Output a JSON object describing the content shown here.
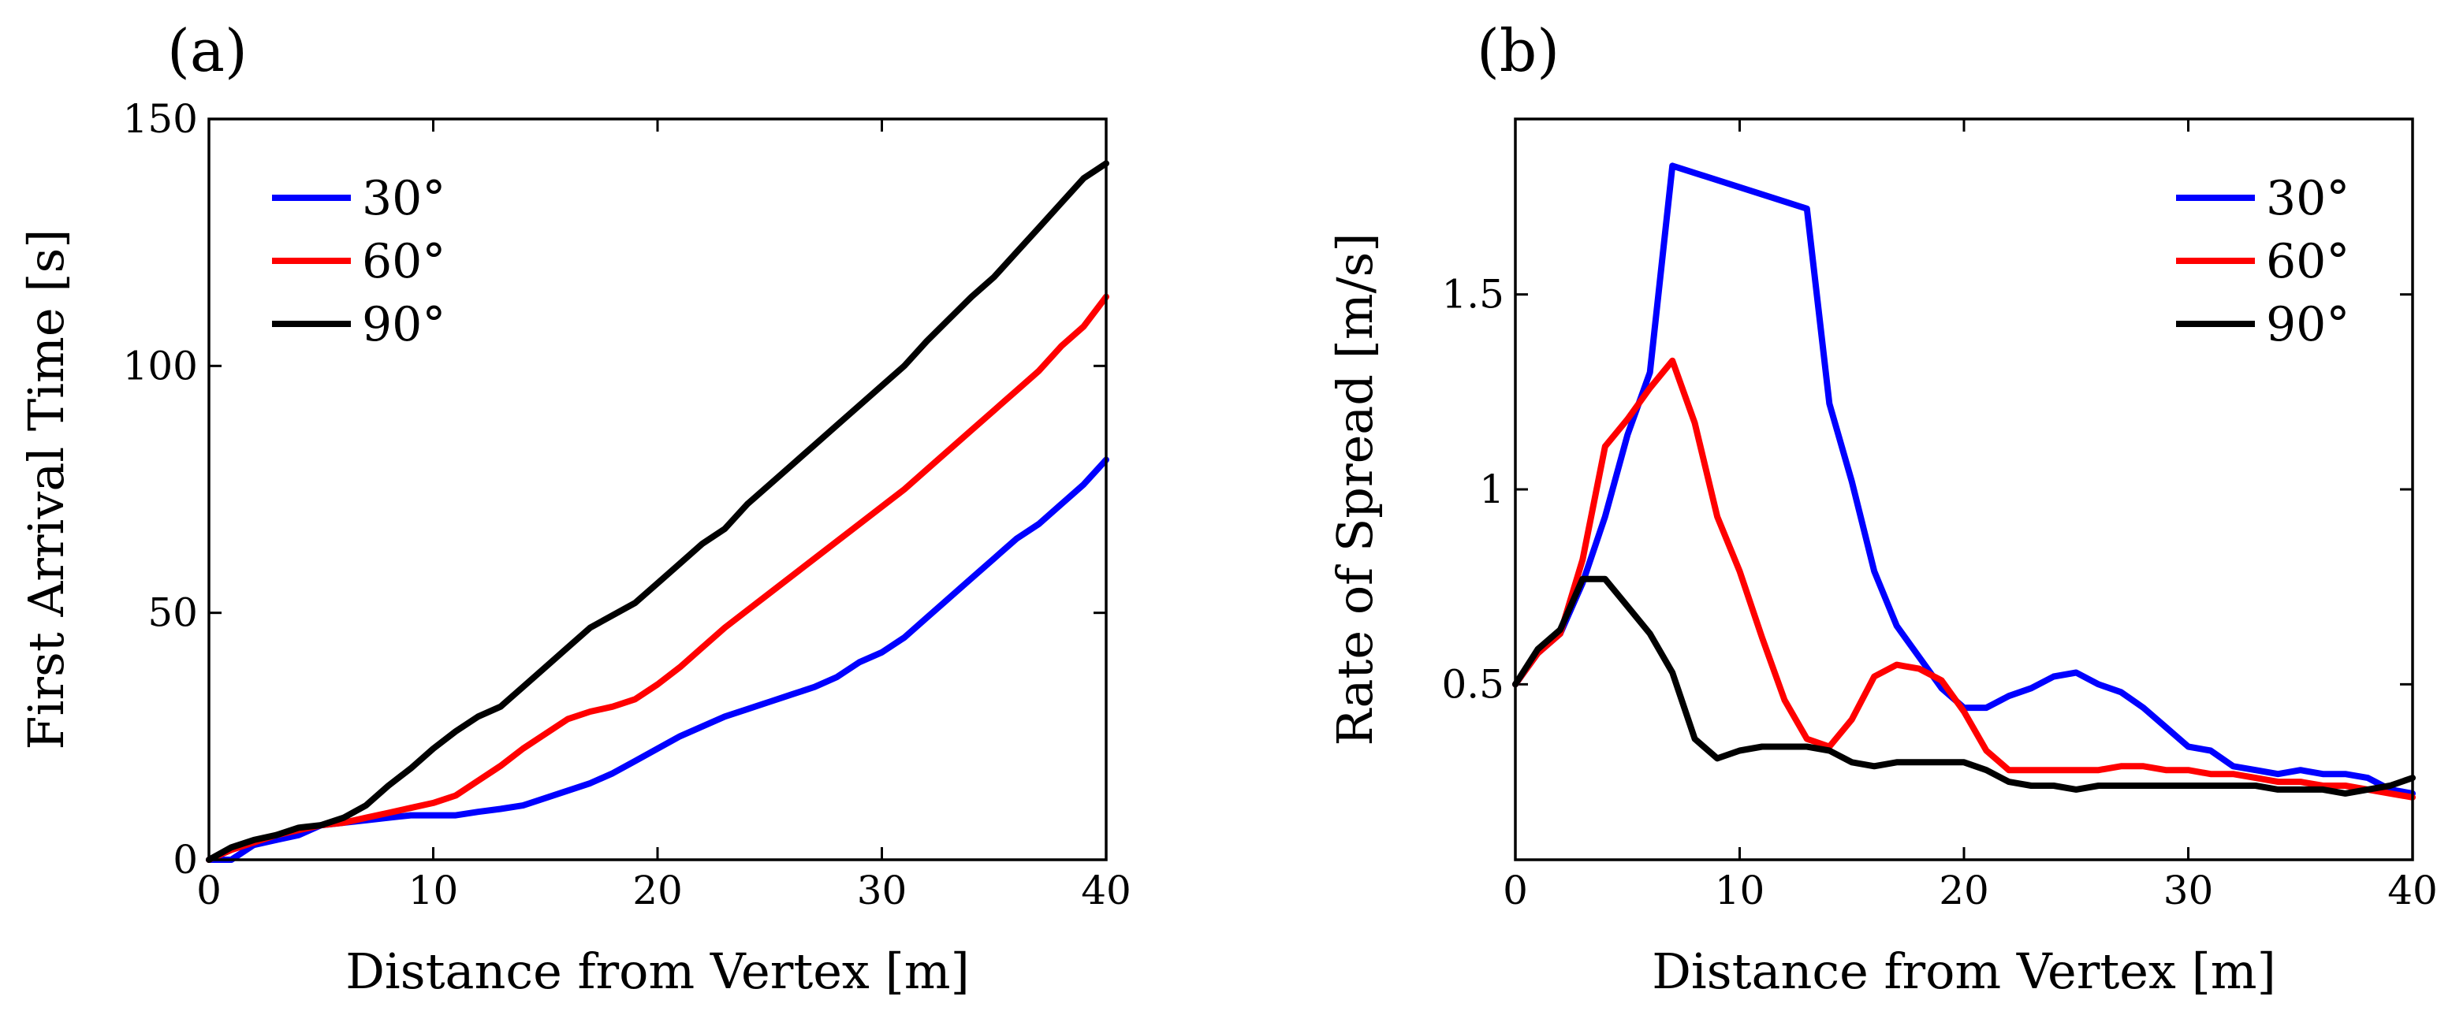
{
  "colors": {
    "30deg": "#0000ff",
    "60deg": "#ff0000",
    "90deg": "#000000"
  },
  "chart_data": [
    {
      "type": "line",
      "panel_label": "(a)",
      "title": "",
      "xlabel": "Distance from Vertex [m]",
      "ylabel": "First Arrival Time [s]",
      "xlim": [
        0,
        40
      ],
      "ylim": [
        0,
        150
      ],
      "xticks": [
        0,
        10,
        20,
        30,
        40
      ],
      "yticks": [
        0,
        50,
        100,
        150
      ],
      "grid": false,
      "legend_position": "top-left",
      "series": [
        {
          "name": "30°",
          "color": "#0000ff",
          "x": [
            0,
            1,
            2,
            3,
            4,
            5,
            6,
            7,
            8,
            9,
            10,
            11,
            12,
            13,
            14,
            15,
            16,
            17,
            18,
            19,
            20,
            21,
            22,
            23,
            24,
            25,
            26,
            27,
            28,
            29,
            30,
            31,
            32,
            33,
            34,
            35,
            36,
            37,
            38,
            39,
            40
          ],
          "y": [
            0,
            0,
            3,
            4,
            5,
            7,
            7.5,
            8,
            8.5,
            9,
            9,
            9,
            9.7,
            10.3,
            11,
            12.5,
            14,
            15.5,
            17.5,
            20,
            22.5,
            25,
            27,
            29,
            30.5,
            32,
            33.5,
            35,
            37,
            40,
            42,
            45,
            49,
            53,
            57,
            61,
            65,
            68,
            72,
            76,
            81
          ]
        },
        {
          "name": "60°",
          "color": "#ff0000",
          "x": [
            0,
            1,
            2,
            3,
            4,
            5,
            6,
            7,
            8,
            9,
            10,
            11,
            12,
            13,
            14,
            15,
            16,
            17,
            18,
            19,
            20,
            21,
            22,
            23,
            24,
            25,
            26,
            27,
            28,
            29,
            30,
            31,
            32,
            33,
            34,
            35,
            36,
            37,
            38,
            39,
            40
          ],
          "y": [
            0,
            2,
            3.5,
            5,
            6,
            7,
            7.5,
            8.5,
            9.5,
            10.5,
            11.5,
            13,
            16,
            19,
            22.5,
            25.5,
            28.5,
            30,
            31,
            32.5,
            35.5,
            39,
            43,
            47,
            50.5,
            54,
            57.5,
            61,
            64.5,
            68,
            71.5,
            75,
            79,
            83,
            87,
            91,
            95,
            99,
            104,
            108,
            114
          ]
        },
        {
          "name": "90°",
          "color": "#000000",
          "x": [
            0,
            1,
            2,
            3,
            4,
            5,
            6,
            7,
            8,
            9,
            10,
            11,
            12,
            13,
            14,
            15,
            16,
            17,
            18,
            19,
            20,
            21,
            22,
            23,
            24,
            25,
            26,
            27,
            28,
            29,
            30,
            31,
            32,
            33,
            34,
            35,
            36,
            37,
            38,
            39,
            40
          ],
          "y": [
            0,
            2.5,
            4,
            5,
            6.5,
            7,
            8.5,
            11,
            15,
            18.5,
            22.5,
            26,
            29,
            31,
            35,
            39,
            43,
            47,
            49.5,
            52,
            56,
            60,
            64,
            67,
            72,
            76,
            80,
            84,
            88,
            92,
            96,
            100,
            105,
            109.5,
            114,
            118,
            123,
            128,
            133,
            138,
            141
          ]
        }
      ]
    },
    {
      "type": "line",
      "panel_label": "(b)",
      "title": "",
      "xlabel": "Distance from Vertex [m]",
      "ylabel": "Rate of Spread [m/s]",
      "xlim": [
        0,
        40
      ],
      "ylim": [
        0.05,
        1.95
      ],
      "xticks": [
        0,
        10,
        20,
        30,
        40
      ],
      "xtick_labels": [
        "0",
        "10",
        "20",
        "30",
        "40"
      ],
      "yticks": [
        0.5,
        1,
        1.5
      ],
      "ytick_labels": [
        "0.5",
        "1",
        "1.5"
      ],
      "grid": false,
      "legend_position": "top-right",
      "series": [
        {
          "name": "30°",
          "color": "#0000ff",
          "x": [
            0,
            1,
            2,
            3,
            4,
            5,
            6,
            7,
            13,
            14,
            15,
            16,
            17,
            18,
            19,
            20,
            21,
            22,
            23,
            24,
            25,
            26,
            27,
            28,
            29,
            30,
            31,
            32,
            33,
            34,
            35,
            36,
            37,
            38,
            39,
            40
          ],
          "y": [
            0.5,
            0.58,
            0.63,
            0.76,
            0.93,
            1.14,
            1.3,
            1.83,
            1.72,
            1.22,
            1.02,
            0.79,
            0.65,
            0.57,
            0.49,
            0.44,
            0.44,
            0.47,
            0.49,
            0.52,
            0.53,
            0.5,
            0.48,
            0.44,
            0.39,
            0.34,
            0.33,
            0.29,
            0.28,
            0.27,
            0.28,
            0.27,
            0.27,
            0.26,
            0.23,
            0.22
          ]
        },
        {
          "name": "60°",
          "color": "#ff0000",
          "x": [
            0,
            1,
            2,
            3,
            4,
            5,
            6,
            7,
            8,
            9,
            10,
            11,
            12,
            13,
            14,
            15,
            16,
            17,
            18,
            19,
            20,
            21,
            22,
            23,
            24,
            25,
            26,
            27,
            28,
            29,
            30,
            31,
            32,
            33,
            34,
            35,
            36,
            37,
            38,
            39,
            40
          ],
          "y": [
            0.5,
            0.58,
            0.63,
            0.82,
            1.11,
            1.18,
            1.26,
            1.33,
            1.17,
            0.93,
            0.79,
            0.62,
            0.46,
            0.36,
            0.34,
            0.41,
            0.52,
            0.55,
            0.54,
            0.51,
            0.43,
            0.33,
            0.28,
            0.28,
            0.28,
            0.28,
            0.28,
            0.29,
            0.29,
            0.28,
            0.28,
            0.27,
            0.27,
            0.26,
            0.25,
            0.25,
            0.24,
            0.24,
            0.23,
            0.22,
            0.21
          ]
        },
        {
          "name": "90°",
          "color": "#000000",
          "x": [
            0,
            1,
            2,
            3,
            4,
            5,
            6,
            7,
            8,
            9,
            10,
            11,
            12,
            13,
            14,
            15,
            16,
            17,
            18,
            19,
            20,
            21,
            22,
            23,
            24,
            25,
            26,
            27,
            28,
            29,
            30,
            31,
            32,
            33,
            34,
            35,
            36,
            37,
            38,
            39,
            40
          ],
          "y": [
            0.5,
            0.59,
            0.64,
            0.77,
            0.77,
            0.7,
            0.63,
            0.53,
            0.36,
            0.31,
            0.33,
            0.34,
            0.34,
            0.34,
            0.33,
            0.3,
            0.29,
            0.3,
            0.3,
            0.3,
            0.3,
            0.28,
            0.25,
            0.24,
            0.24,
            0.23,
            0.24,
            0.24,
            0.24,
            0.24,
            0.24,
            0.24,
            0.24,
            0.24,
            0.23,
            0.23,
            0.23,
            0.22,
            0.23,
            0.24,
            0.26
          ]
        }
      ]
    }
  ]
}
